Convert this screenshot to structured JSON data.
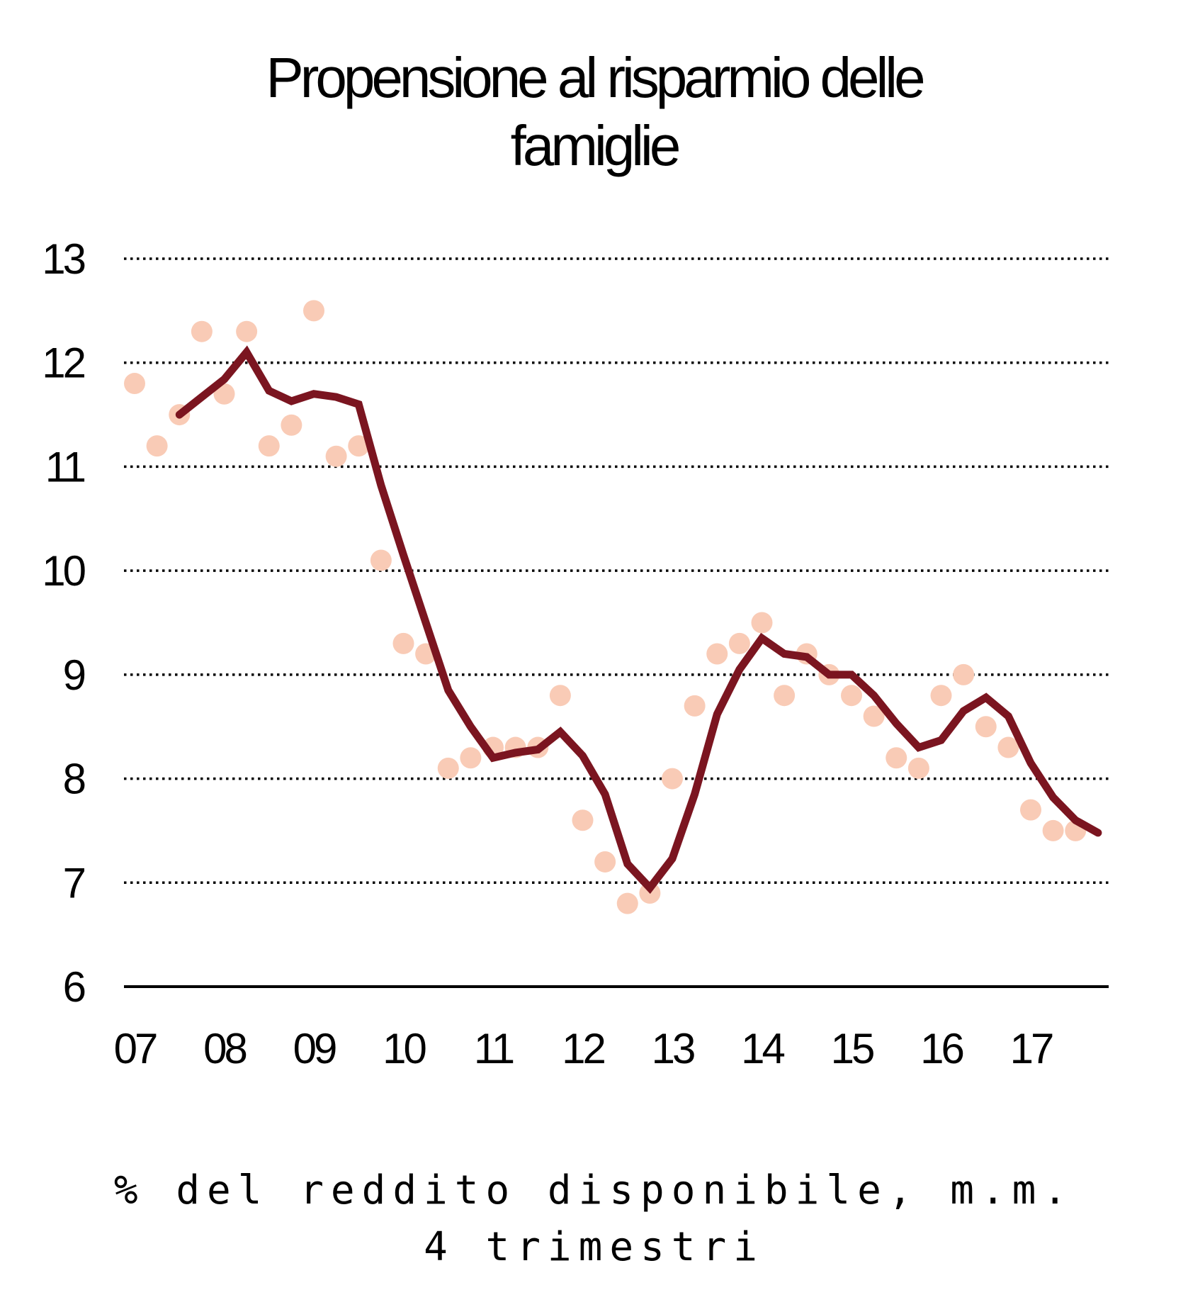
{
  "chart_data": {
    "type": "line",
    "title_lines": [
      "Propensione al risparmio delle",
      "famiglie"
    ],
    "note_lines": [
      "% del reddito disponibile, m.m.",
      "4 trimestri"
    ],
    "ylim": [
      6,
      13
    ],
    "yticks": [
      "13",
      "12",
      "11",
      "10",
      "9",
      "8",
      "7",
      "6"
    ],
    "ytick_values": [
      13,
      12,
      11,
      10,
      9,
      8,
      7,
      6
    ],
    "xticks": [
      "07",
      "08",
      "09",
      "10",
      "11",
      "12",
      "13",
      "14",
      "15",
      "16",
      "17"
    ],
    "grid": true,
    "colors": {
      "line": "#7b1520",
      "dots": "#f9cbb6"
    },
    "series": [
      {
        "type": "scatter",
        "x": [
          2007.0,
          2007.25,
          2007.5,
          2007.75,
          2008.0,
          2008.25,
          2008.5,
          2008.75,
          2009.0,
          2009.25,
          2009.5,
          2009.75,
          2010.0,
          2010.25,
          2010.5,
          2010.75,
          2011.0,
          2011.25,
          2011.5,
          2011.75,
          2012.0,
          2012.25,
          2012.5,
          2012.75,
          2013.0,
          2013.25,
          2013.5,
          2013.75,
          2014.0,
          2014.25,
          2014.5,
          2014.75,
          2015.0,
          2015.25,
          2015.5,
          2015.75,
          2016.0,
          2016.25,
          2016.5,
          2016.75,
          2017.0,
          2017.25,
          2017.5
        ],
        "values": [
          11.8,
          11.2,
          11.5,
          12.3,
          11.7,
          12.3,
          11.2,
          11.4,
          12.5,
          11.1,
          11.2,
          10.1,
          9.3,
          9.2,
          8.1,
          8.2,
          8.3,
          8.3,
          8.3,
          8.8,
          7.6,
          7.2,
          6.8,
          6.9,
          8.0,
          8.7,
          9.2,
          9.3,
          9.5,
          8.8,
          9.2,
          9.0,
          8.8,
          8.6,
          8.2,
          8.1,
          8.8,
          9.0,
          8.5,
          8.3,
          7.7,
          7.5,
          7.5
        ]
      },
      {
        "type": "line",
        "x": [
          2007.5,
          2007.75,
          2008.0,
          2008.25,
          2008.5,
          2008.75,
          2009.0,
          2009.25,
          2009.5,
          2009.75,
          2010.0,
          2010.25,
          2010.5,
          2010.75,
          2011.0,
          2011.25,
          2011.5,
          2011.75,
          2012.0,
          2012.25,
          2012.5,
          2012.75,
          2013.0,
          2013.25,
          2013.5,
          2013.75,
          2014.0,
          2014.25,
          2014.5,
          2014.75,
          2015.0,
          2015.25,
          2015.5,
          2015.75,
          2016.0,
          2016.25,
          2016.5,
          2016.75,
          2017.0,
          2017.25,
          2017.5,
          2017.75
        ],
        "values": [
          11.5,
          11.67,
          11.84,
          12.1,
          11.73,
          11.63,
          11.7,
          11.67,
          11.6,
          10.82,
          10.15,
          9.5,
          8.85,
          8.5,
          8.2,
          8.25,
          8.28,
          8.45,
          8.22,
          7.85,
          7.18,
          6.95,
          7.23,
          7.85,
          8.62,
          9.05,
          9.35,
          9.2,
          9.17,
          9.0,
          9.0,
          8.8,
          8.53,
          8.3,
          8.37,
          8.65,
          8.78,
          8.6,
          8.15,
          7.82,
          7.6,
          7.48
        ]
      }
    ]
  }
}
